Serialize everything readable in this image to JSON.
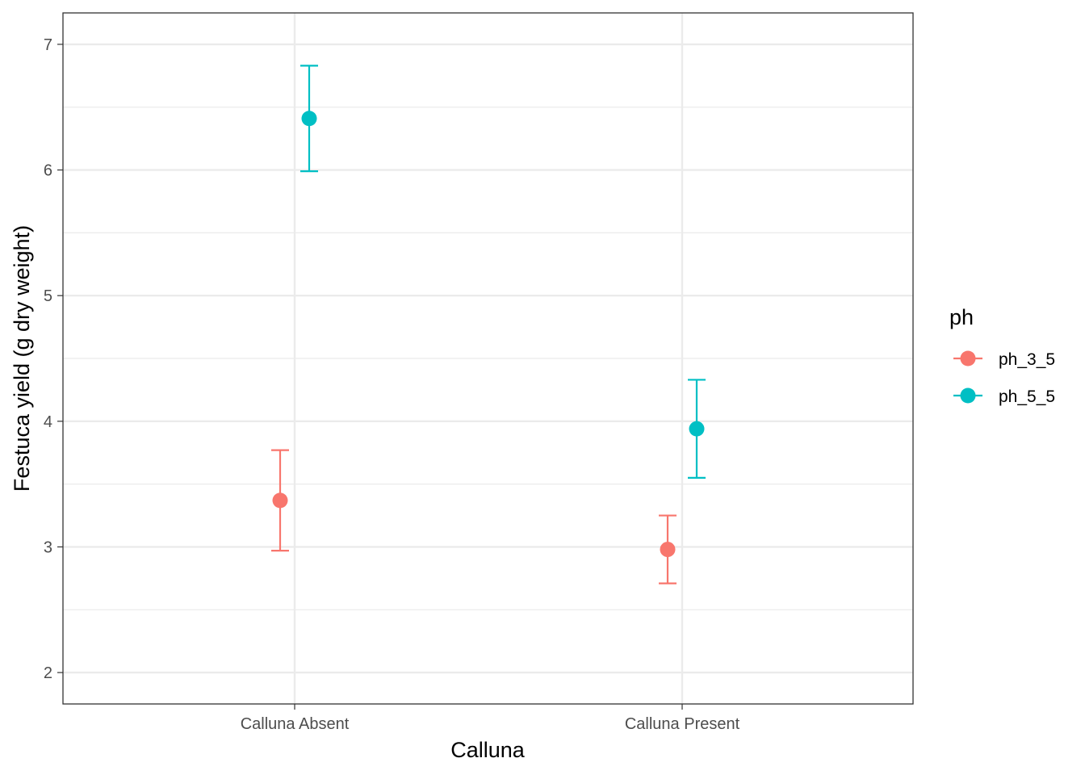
{
  "chart_data": {
    "type": "scatter",
    "title": "",
    "xlabel": "Calluna",
    "ylabel": "Festuca yield (g dry weight)",
    "categories": [
      "Calluna Absent",
      "Calluna Present"
    ],
    "ylim": [
      1.75,
      7.25
    ],
    "yticks": [
      "2",
      "3",
      "4",
      "5",
      "6",
      "7"
    ],
    "grid": true,
    "legend": {
      "title": "ph",
      "placement": "right"
    },
    "series": [
      {
        "name": "ph_3_5",
        "color": "#F8766D",
        "values": [
          3.37,
          2.98
        ],
        "lower": [
          2.97,
          2.71
        ],
        "upper": [
          3.77,
          3.25
        ]
      },
      {
        "name": "ph_5_5",
        "color": "#00BFC4",
        "values": [
          6.41,
          3.94
        ],
        "lower": [
          5.99,
          3.55
        ],
        "upper": [
          6.83,
          4.33
        ]
      }
    ]
  }
}
